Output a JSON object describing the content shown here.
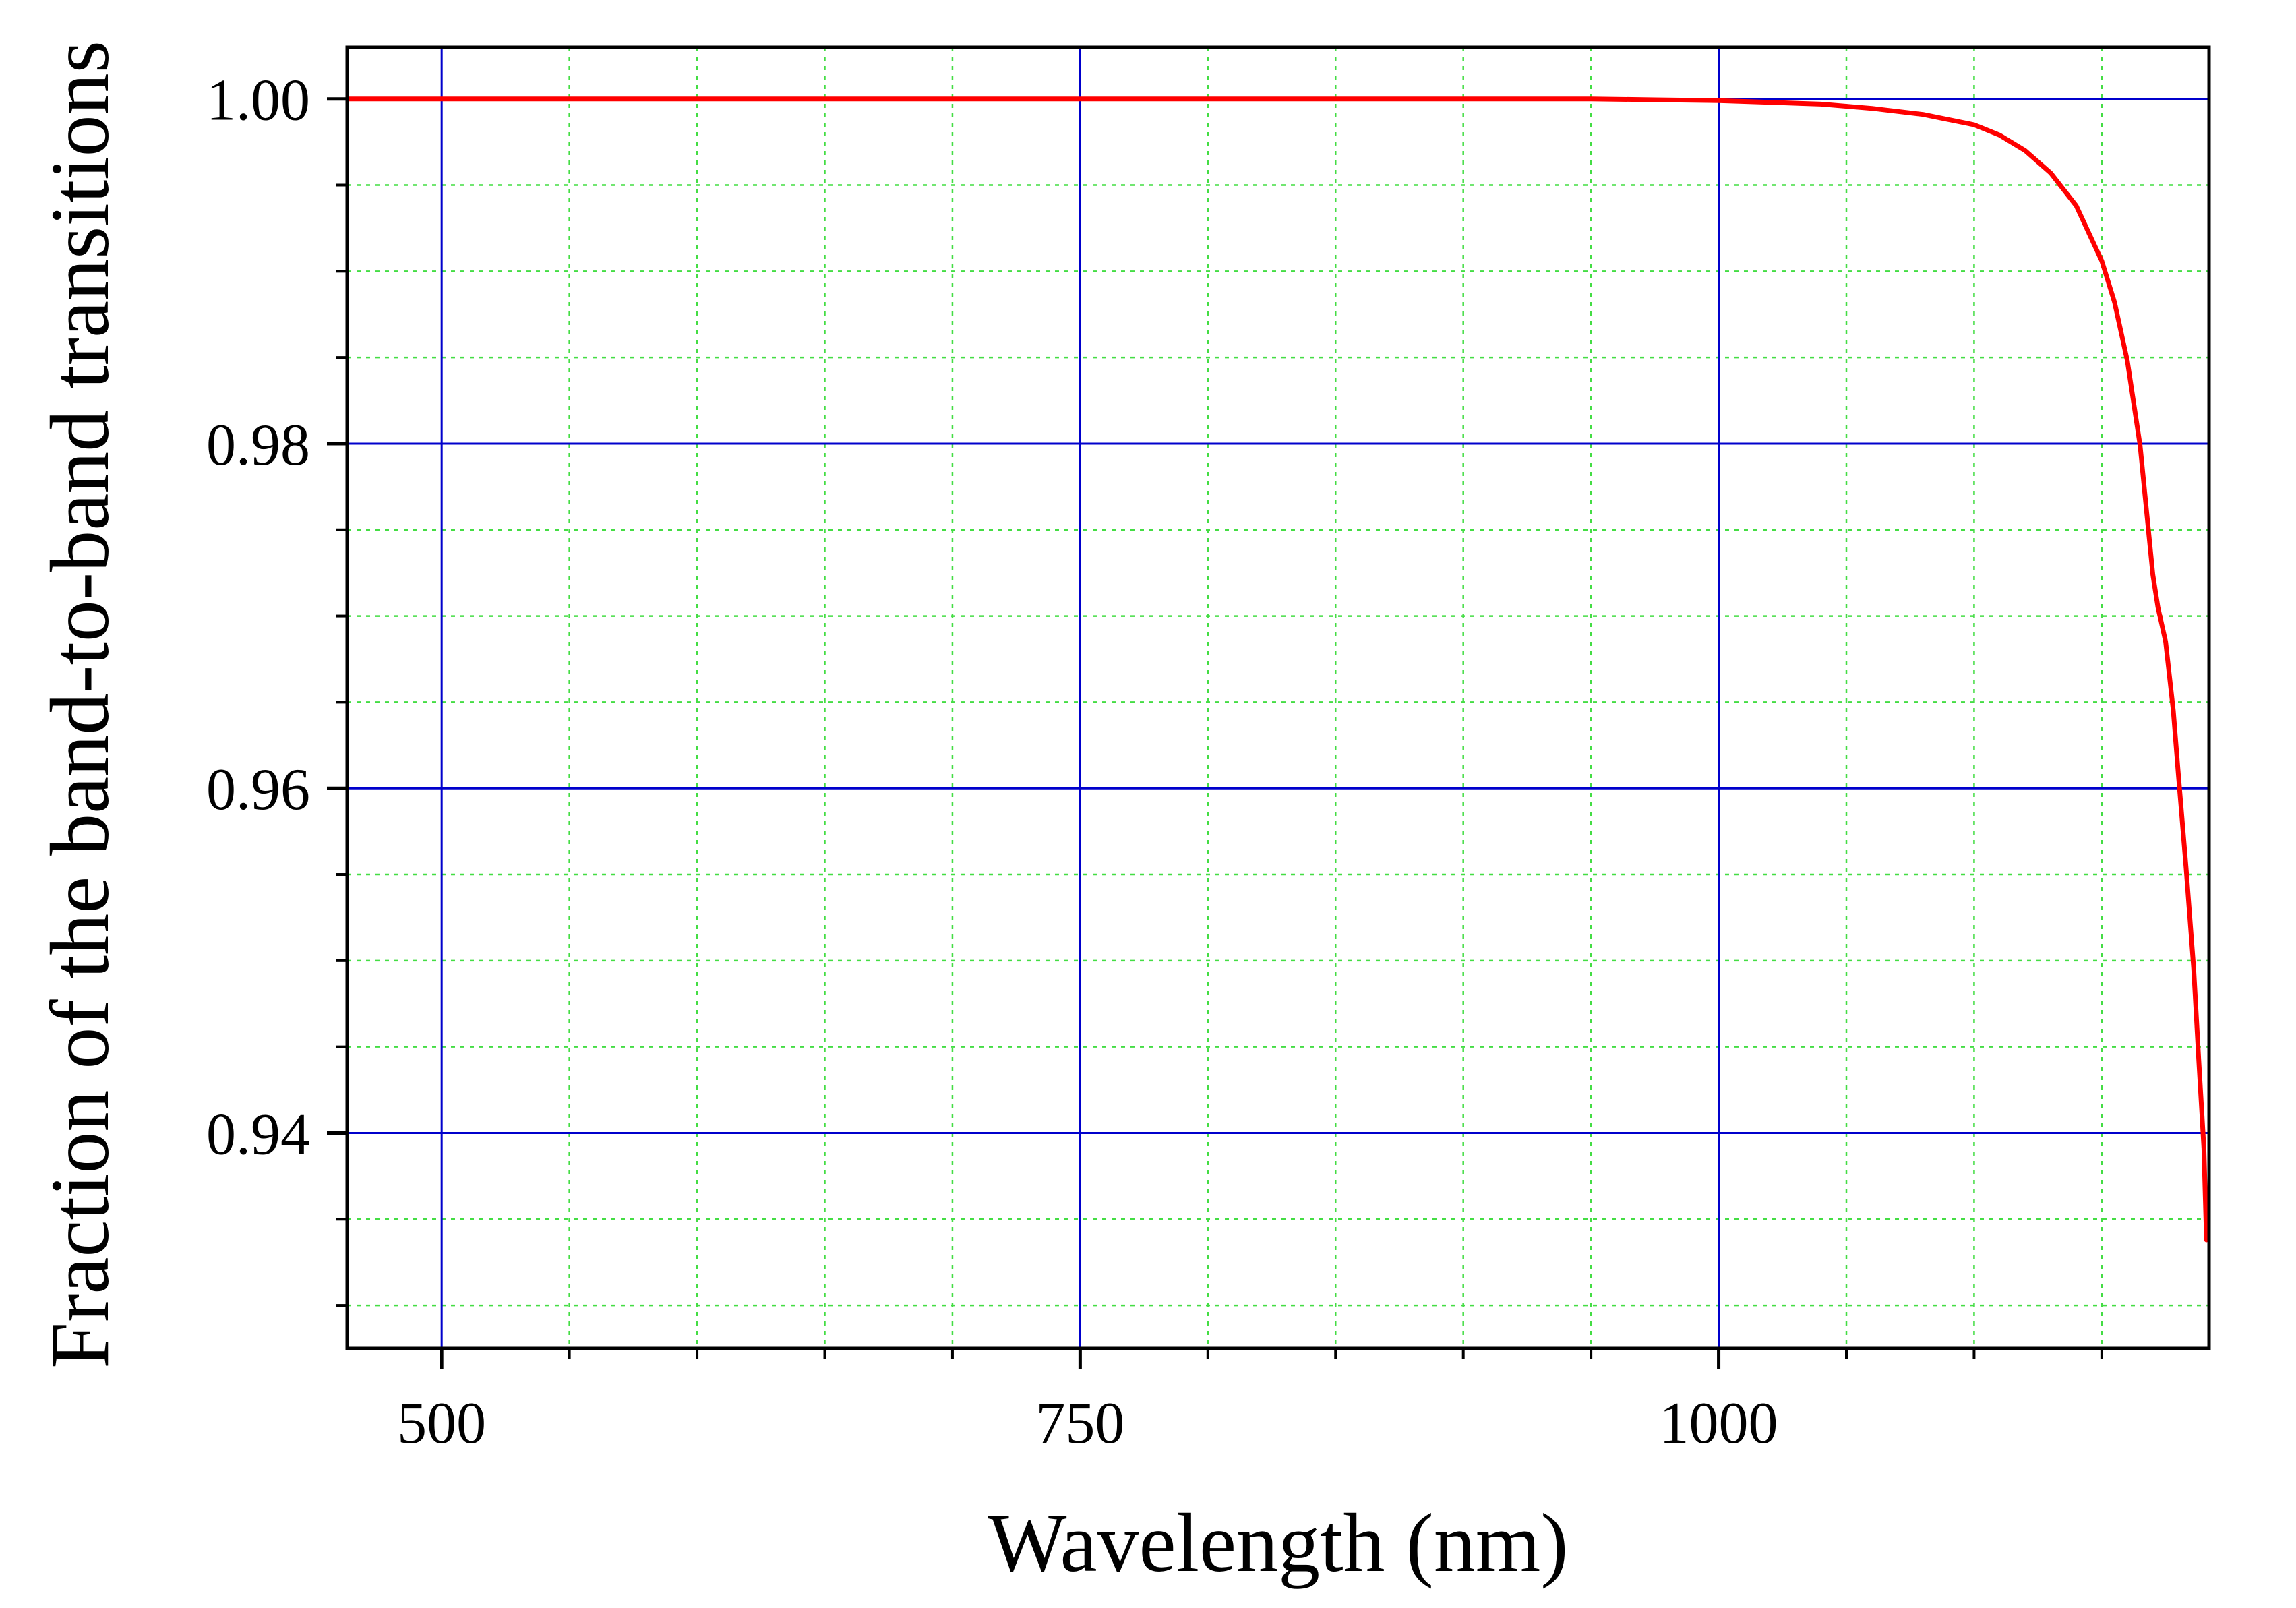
{
  "chart_data": {
    "type": "line",
    "title": "",
    "xlabel": "Wavelength (nm)",
    "ylabel": "Fraction of the band-to-band transitions",
    "xlim": [
      463,
      1192
    ],
    "ylim": [
      0.9275,
      1.003
    ],
    "x_ticks": [
      500,
      750,
      1000
    ],
    "x_tick_labels": [
      "500",
      "750",
      "1000"
    ],
    "x_minor_step": 50,
    "y_ticks": [
      0.94,
      0.96,
      0.98,
      1.0
    ],
    "y_tick_labels": [
      "0.94",
      "0.96",
      "0.98",
      "1.00"
    ],
    "y_minor_step": 0.005,
    "grid": true,
    "legend": "none",
    "colors": {
      "line": "#ff0000",
      "major_grid": "#0000cc",
      "minor_grid": "#44dd44",
      "axes": "#000000"
    },
    "series": [
      {
        "x": [
          463,
          500,
          550,
          600,
          650,
          700,
          750,
          800,
          850,
          900,
          950,
          975,
          1000,
          1020,
          1040,
          1060,
          1080,
          1100,
          1110,
          1120,
          1130,
          1140,
          1150,
          1155,
          1160,
          1165,
          1170,
          1172,
          1175,
          1178,
          1180,
          1183,
          1186,
          1188,
          1190,
          1191
        ],
        "y": [
          1.0,
          1.0,
          1.0,
          1.0,
          1.0,
          1.0,
          1.0,
          1.0,
          1.0,
          1.0,
          1.0,
          0.99995,
          0.9999,
          0.9998,
          0.9997,
          0.99945,
          0.9991,
          0.9985,
          0.9979,
          0.997,
          0.9957,
          0.9938,
          0.9906,
          0.9882,
          0.9848,
          0.9799,
          0.9724,
          0.9705,
          0.9685,
          0.9645,
          0.9608,
          0.9554,
          0.9495,
          0.9442,
          0.9391,
          0.9338
        ]
      }
    ]
  }
}
